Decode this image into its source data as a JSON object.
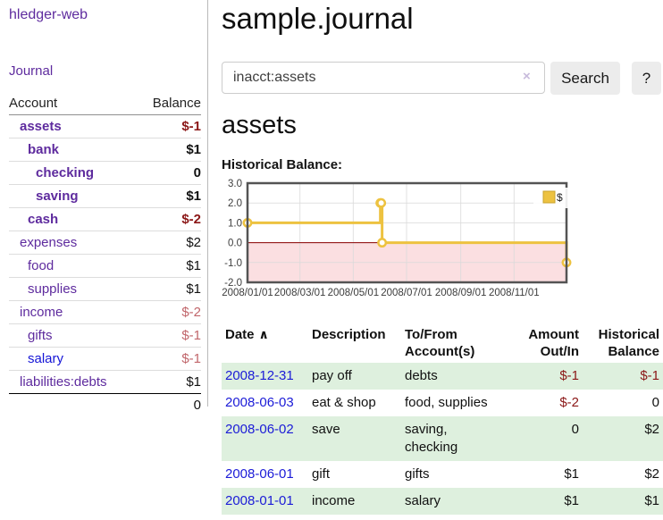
{
  "app": {
    "brand": "hledger-web"
  },
  "nav": {
    "journal": "Journal"
  },
  "sidebar": {
    "headers": {
      "account": "Account",
      "balance": "Balance"
    },
    "accounts": [
      {
        "name": "assets",
        "balance": "$-1",
        "name_class": "lvl1 purple b",
        "balance_class": "b neg"
      },
      {
        "name": "bank",
        "balance": "$1",
        "name_class": "lvl2 purple b",
        "balance_class": "b"
      },
      {
        "name": "checking",
        "balance": "0",
        "name_class": "lvl3 purple b",
        "balance_class": "b"
      },
      {
        "name": "saving",
        "balance": "$1",
        "name_class": "lvl3 purple b",
        "balance_class": "b"
      },
      {
        "name": "cash",
        "balance": "$-2",
        "name_class": "lvl2 purple b",
        "balance_class": "b neg"
      },
      {
        "name": "expenses",
        "balance": "$2",
        "name_class": "lvl1 purple",
        "balance_class": ""
      },
      {
        "name": "food",
        "balance": "$1",
        "name_class": "lvl2 purple",
        "balance_class": ""
      },
      {
        "name": "supplies",
        "balance": "$1",
        "name_class": "lvl2 purple",
        "balance_class": ""
      },
      {
        "name": "income",
        "balance": "$-2",
        "name_class": "lvl1 purple",
        "balance_class": "negmuted"
      },
      {
        "name": "gifts",
        "balance": "$-1",
        "name_class": "lvl2 purple",
        "balance_class": "negmuted"
      },
      {
        "name": "salary",
        "balance": "$-1",
        "name_class": "lvl2 blue",
        "balance_class": "negmuted"
      },
      {
        "name": "liabilities:debts",
        "balance": "$1",
        "name_class": "lvl1 purple",
        "balance_class": ""
      }
    ],
    "total": "0"
  },
  "header": {
    "title": "sample.journal"
  },
  "search": {
    "value": "inacct:assets",
    "clear_icon": "×",
    "search_button": "Search",
    "help_button": "?"
  },
  "account_page": {
    "heading": "assets",
    "chart_title": "Historical Balance:"
  },
  "chart_data": {
    "type": "line",
    "title": "Historical Balance:",
    "step": true,
    "legend": "$",
    "legend_position": "top-right",
    "grid": true,
    "x_domain": [
      "2008-01-01",
      "2008-12-31"
    ],
    "ylim": [
      -2,
      3
    ],
    "y_ticks": [
      "3.0",
      "2.0",
      "1.0",
      "0.0",
      "-1.0",
      "-2.0"
    ],
    "x_ticks": [
      "2008/01/01",
      "2008/03/01",
      "2008/05/01",
      "2008/07/01",
      "2008/09/01",
      "2008/11/01"
    ],
    "series": [
      {
        "name": "$",
        "points": [
          [
            "2008-01-01",
            1
          ],
          [
            "2008-06-01",
            2
          ],
          [
            "2008-06-02",
            2
          ],
          [
            "2008-06-03",
            0
          ],
          [
            "2008-12-31",
            -1
          ]
        ]
      }
    ],
    "colors": {
      "line": "#edc240",
      "marker_fill": "#ffffff",
      "negative_fill": "#fbdfe1",
      "zero_line": "#8b0000",
      "grid": "#d9d9d9",
      "border": "#545454"
    }
  },
  "register": {
    "headers": {
      "date": "Date",
      "sort_icon": "∧",
      "description": "Description",
      "accounts": "To/From Account(s)",
      "amount": "Amount Out/In",
      "balance": "Historical Balance"
    },
    "rows": [
      {
        "date": "2008-12-31",
        "description": "pay off",
        "accounts": "debts",
        "amount": "$-1",
        "balance": "$-1",
        "amount_class": "neg",
        "balance_class": "neg"
      },
      {
        "date": "2008-06-03",
        "description": "eat & shop",
        "accounts": "food, supplies",
        "amount": "$-2",
        "balance": "0",
        "amount_class": "neg",
        "balance_class": ""
      },
      {
        "date": "2008-06-02",
        "description": "save",
        "accounts": "saving, checking",
        "amount": "0",
        "balance": "$2",
        "amount_class": "",
        "balance_class": ""
      },
      {
        "date": "2008-06-01",
        "description": "gift",
        "accounts": "gifts",
        "amount": "$1",
        "balance": "$2",
        "amount_class": "",
        "balance_class": ""
      },
      {
        "date": "2008-01-01",
        "description": "income",
        "accounts": "salary",
        "amount": "$1",
        "balance": "$1",
        "amount_class": "",
        "balance_class": ""
      }
    ]
  },
  "colors": {
    "accent_purple": "#5e2b9e",
    "link_blue": "#1515d6",
    "negative": "#8b1717",
    "negative_muted": "#c1666b",
    "row_stripe_green": "#def0de"
  }
}
